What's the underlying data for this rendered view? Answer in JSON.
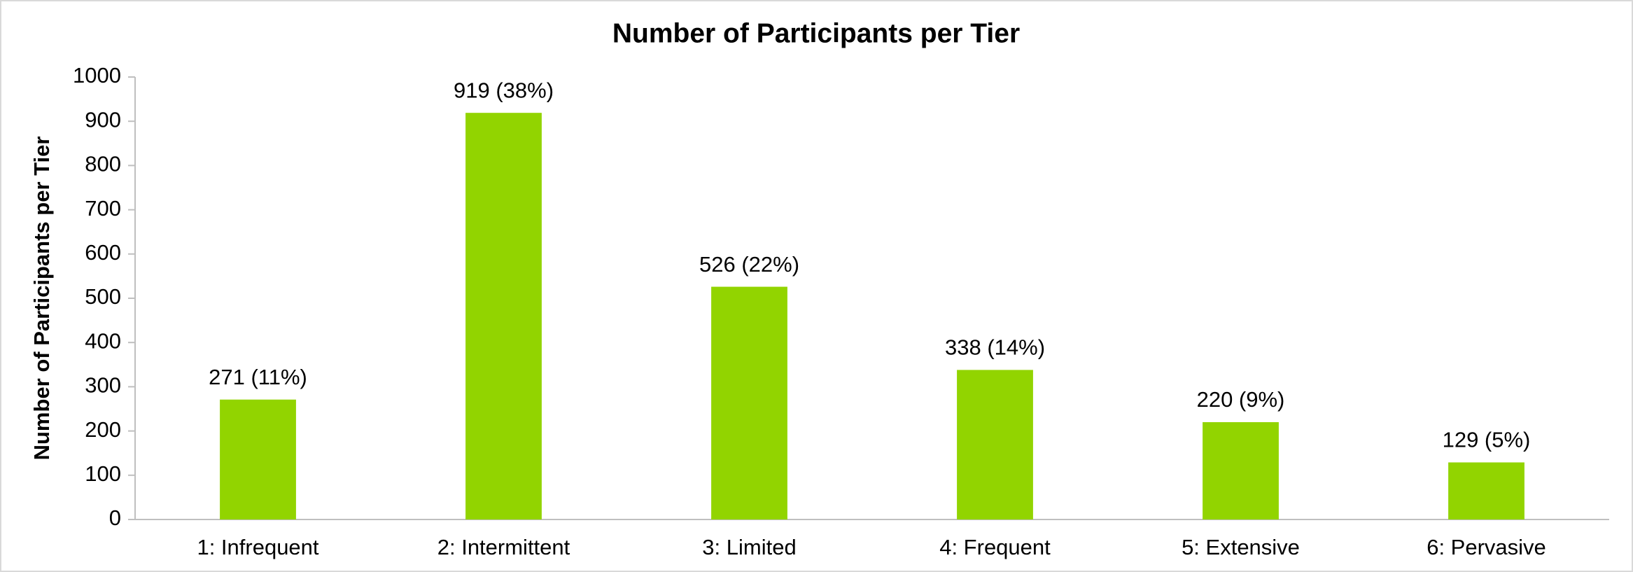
{
  "chart_data": {
    "type": "bar",
    "title": "Number of Participants per Tier",
    "y_label": "Number of Participants per Tier",
    "categories": [
      "1: Infrequent",
      "2: Intermittent",
      "3: Limited",
      "4: Frequent",
      "5: Extensive",
      "6: Pervasive"
    ],
    "values": [
      271,
      919,
      526,
      338,
      220,
      129
    ],
    "value_labels": [
      "271 (11%)",
      "919 (38%)",
      "526 (22%)",
      "338 (14%)",
      "220 (9%)",
      "129 (5%)"
    ],
    "color": "#92d400",
    "ylim": [
      0,
      1000
    ],
    "yticks": [
      0,
      100,
      200,
      300,
      400,
      500,
      600,
      700,
      800,
      900,
      1000
    ],
    "grid": false
  }
}
